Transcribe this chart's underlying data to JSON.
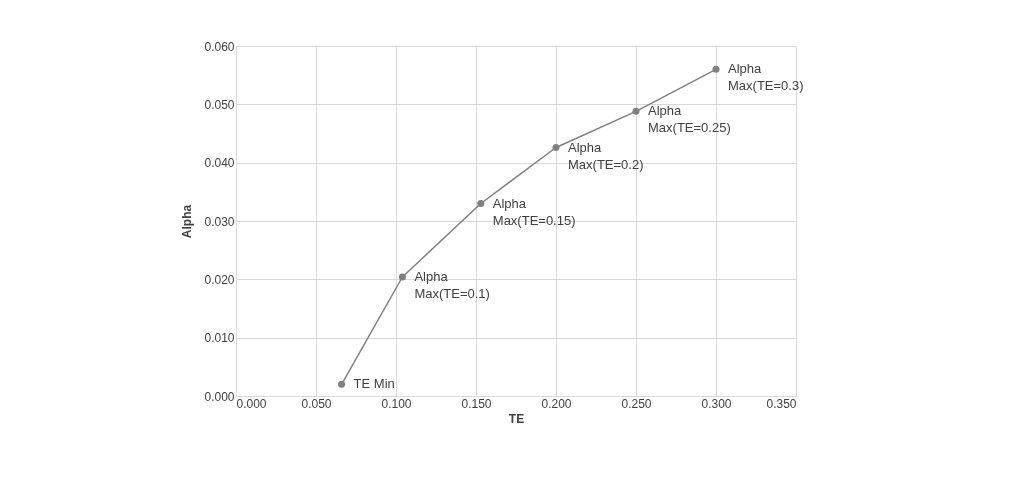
{
  "chart_data": {
    "type": "line",
    "xlabel": "TE",
    "ylabel": "Alpha",
    "x": [
      0.066,
      0.104,
      0.153,
      0.2,
      0.25,
      0.3
    ],
    "series": [
      {
        "color": "#808080",
        "values": [
          0.002,
          0.0204,
          0.033,
          0.0426,
          0.0488,
          0.056
        ]
      }
    ],
    "xlim": [
      0,
      0.35
    ],
    "ylim": [
      0,
      0.06
    ],
    "xticks": [
      {
        "value": 0,
        "label": "0.000"
      },
      {
        "value": 0.05,
        "label": "0.050"
      },
      {
        "value": 0.1,
        "label": "0.100"
      },
      {
        "value": 0.15,
        "label": "0.150"
      },
      {
        "value": 0.2,
        "label": "0.200"
      },
      {
        "value": 0.25,
        "label": "0.250"
      },
      {
        "value": 0.3,
        "label": "0.300"
      },
      {
        "value": 0.35,
        "label": "0.350"
      }
    ],
    "yticks": [
      {
        "value": 0,
        "label": "0.000"
      },
      {
        "value": 0.01,
        "label": "0.010"
      },
      {
        "value": 0.02,
        "label": "0.020"
      },
      {
        "value": 0.03,
        "label": "0.030"
      },
      {
        "value": 0.04,
        "label": "0.040"
      },
      {
        "value": 0.05,
        "label": "0.050"
      },
      {
        "value": 0.06,
        "label": "0.060"
      }
    ],
    "annotations": [
      {
        "text": "TE Min",
        "x": 0.066,
        "y": 0.002
      },
      {
        "text": "Alpha\nMax(TE=0.1)",
        "x": 0.104,
        "y": 0.0204
      },
      {
        "text": "Alpha\nMax(TE=0.15)",
        "x": 0.153,
        "y": 0.033
      },
      {
        "text": "Alpha\nMax(TE=0.2)",
        "x": 0.2,
        "y": 0.0426
      },
      {
        "text": "Alpha\nMax(TE=0.25)",
        "x": 0.25,
        "y": 0.0488
      },
      {
        "text": "Alpha\nMax(TE=0.3)",
        "x": 0.3,
        "y": 0.056
      }
    ],
    "grid": true,
    "marker": "circle",
    "line_style": "solid"
  }
}
